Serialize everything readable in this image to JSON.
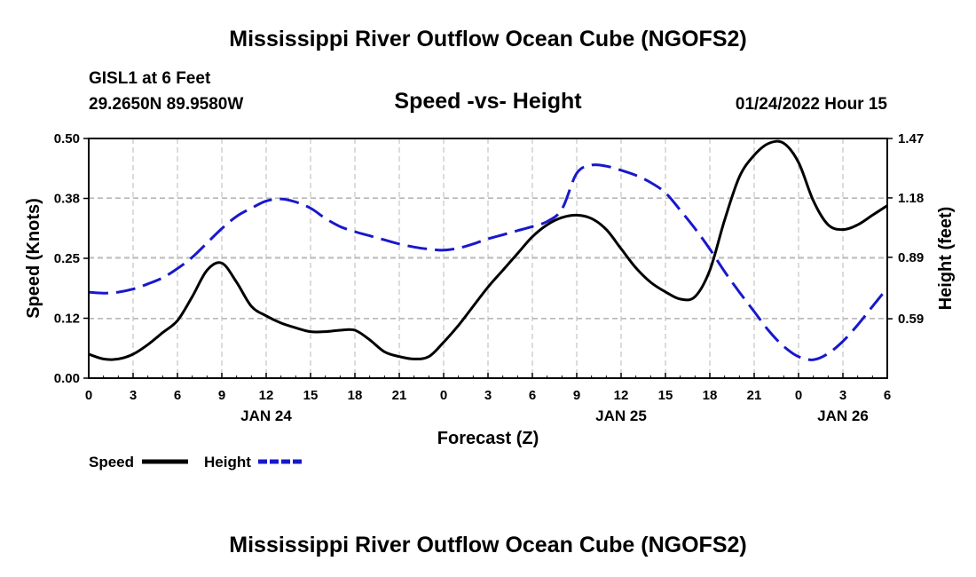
{
  "page": {
    "title_top": "Mississippi River Outflow Ocean Cube (NGOFS2)",
    "title_bottom": "Mississippi River Outflow Ocean Cube (NGOFS2)",
    "station_line": "GISL1 at 6 Feet",
    "coords_line": "29.2650N  89.9580W",
    "subtitle": "Speed -vs- Height",
    "timestamp": "01/24/2022 Hour 15"
  },
  "chart_data": {
    "type": "line",
    "title": "Speed -vs- Height",
    "xlabel": "Forecast (Z)",
    "ylabel": "Speed (Knots)",
    "y2label": "Height (feet)",
    "xlim": [
      0,
      54
    ],
    "ylim": [
      0.0,
      0.5
    ],
    "y2lim": [
      0.3,
      1.47
    ],
    "grid": true,
    "x_tick_values": [
      0,
      3,
      6,
      9,
      12,
      15,
      18,
      21,
      24,
      27,
      30,
      33,
      36,
      39,
      42,
      45,
      48,
      51,
      54
    ],
    "x_tick_labels": [
      "0",
      "3",
      "6",
      "9",
      "12",
      "15",
      "18",
      "21",
      "0",
      "3",
      "6",
      "9",
      "12",
      "15",
      "18",
      "21",
      "0",
      "3",
      "6"
    ],
    "date_labels": [
      {
        "text": "JAN 24",
        "x": 12
      },
      {
        "text": "JAN 25",
        "x": 36
      },
      {
        "text": "JAN 26",
        "x": 51
      }
    ],
    "y_ticks": [
      0.0,
      0.125,
      0.25,
      0.375,
      0.5
    ],
    "y_tick_labels": [
      "0.00",
      "0.12",
      "0.25",
      "0.38",
      "0.50"
    ],
    "y2_ticks": [
      0.59,
      0.89,
      1.18,
      1.47
    ],
    "y2_tick_labels": [
      "0.59",
      "0.89",
      "1.18",
      "1.47"
    ],
    "series": [
      {
        "name": "Speed",
        "axis": "left",
        "color": "#000000",
        "dash": "solid",
        "x": [
          0,
          1,
          2,
          3,
          4,
          5,
          6,
          7,
          8,
          9,
          10,
          11,
          12,
          13,
          14,
          15,
          16,
          17,
          18,
          19,
          20,
          21,
          22,
          23,
          24,
          25,
          26,
          27,
          28,
          29,
          30,
          31,
          32,
          33,
          34,
          35,
          36,
          37,
          38,
          39,
          40,
          41,
          42,
          43,
          44,
          45,
          46,
          47,
          48,
          49,
          50,
          51,
          52,
          53,
          54
        ],
        "values": [
          0.05,
          0.04,
          0.04,
          0.05,
          0.07,
          0.095,
          0.12,
          0.17,
          0.225,
          0.24,
          0.2,
          0.15,
          0.13,
          0.115,
          0.105,
          0.097,
          0.097,
          0.1,
          0.1,
          0.08,
          0.055,
          0.045,
          0.04,
          0.045,
          0.075,
          0.11,
          0.15,
          0.19,
          0.225,
          0.26,
          0.295,
          0.32,
          0.335,
          0.34,
          0.333,
          0.31,
          0.27,
          0.23,
          0.2,
          0.18,
          0.165,
          0.17,
          0.225,
          0.33,
          0.42,
          0.465,
          0.49,
          0.49,
          0.45,
          0.37,
          0.32,
          0.31,
          0.32,
          0.34,
          0.36
        ]
      },
      {
        "name": "Height",
        "axis": "right",
        "color": "#1818cc",
        "dash": "dashed",
        "x": [
          0,
          1,
          2,
          3,
          4,
          5,
          6,
          7,
          8,
          9,
          10,
          11,
          12,
          13,
          14,
          15,
          16,
          17,
          18,
          19,
          20,
          21,
          22,
          23,
          24,
          25,
          26,
          27,
          28,
          29,
          30,
          31,
          32,
          33,
          34,
          35,
          36,
          37,
          38,
          39,
          40,
          41,
          42,
          43,
          44,
          45,
          46,
          47,
          48,
          49,
          50,
          51,
          52,
          53,
          54
        ],
        "values": [
          0.72,
          0.715,
          0.72,
          0.735,
          0.76,
          0.79,
          0.835,
          0.89,
          0.96,
          1.03,
          1.09,
          1.13,
          1.165,
          1.175,
          1.16,
          1.13,
          1.08,
          1.04,
          1.015,
          0.995,
          0.975,
          0.955,
          0.94,
          0.93,
          0.925,
          0.935,
          0.955,
          0.98,
          1.0,
          1.02,
          1.04,
          1.065,
          1.125,
          1.3,
          1.34,
          1.335,
          1.315,
          1.29,
          1.255,
          1.205,
          1.12,
          1.03,
          0.93,
          0.82,
          0.72,
          0.625,
          0.53,
          0.455,
          0.405,
          0.39,
          0.42,
          0.48,
          0.56,
          0.65,
          0.74
        ]
      }
    ],
    "legend": [
      "Speed",
      "Height"
    ]
  }
}
